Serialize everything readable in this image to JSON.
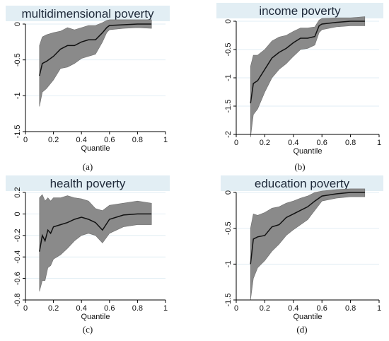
{
  "chart_data": [
    {
      "type": "line",
      "title": "multidimensional poverty",
      "panel_label": "(a)",
      "xlabel": "Quantile",
      "ylabel": "",
      "xlim": [
        0,
        1
      ],
      "ylim": [
        -1.5,
        0
      ],
      "xticks": [
        "0",
        "0.2",
        "0.4",
        "0.6",
        "0.8",
        "1"
      ],
      "yticks": [
        "0",
        "-0.5",
        "-1",
        "-1.5"
      ],
      "ytick_values": [
        0,
        -0.5,
        -1,
        -1.5
      ],
      "grid": true,
      "legend": "none",
      "series": [
        {
          "band": "confidence interval",
          "x": [
            0.1,
            0.12,
            0.15,
            0.2,
            0.25,
            0.3,
            0.35,
            0.4,
            0.45,
            0.5,
            0.55,
            0.58,
            0.6,
            0.7,
            0.8,
            0.9
          ],
          "values": [
            -0.72,
            -0.55,
            -0.52,
            -0.45,
            -0.35,
            -0.3,
            -0.3,
            -0.25,
            -0.22,
            -0.22,
            -0.12,
            -0.05,
            -0.02,
            -0.01,
            0,
            0
          ],
          "lower": [
            -1.15,
            -0.95,
            -0.9,
            -0.78,
            -0.62,
            -0.6,
            -0.55,
            -0.48,
            -0.45,
            -0.42,
            -0.25,
            -0.12,
            -0.08,
            -0.06,
            -0.05,
            -0.06
          ],
          "upper": [
            -0.3,
            -0.18,
            -0.15,
            -0.12,
            -0.1,
            -0.05,
            -0.08,
            -0.05,
            -0.02,
            -0.02,
            0.02,
            0.05,
            0.06,
            0.06,
            0.06,
            0.06
          ]
        }
      ]
    },
    {
      "type": "line",
      "title": "income poverty",
      "panel_label": "(b)",
      "xlabel": "Quantile",
      "ylabel": "",
      "xlim": [
        0,
        1
      ],
      "ylim": [
        -2,
        0
      ],
      "xticks": [
        "0",
        "0.2",
        "0.4",
        "0.6",
        "0.8",
        "1"
      ],
      "yticks": [
        "0",
        "-0.5",
        "-1",
        "-1.5",
        "-2"
      ],
      "ytick_values": [
        0,
        -0.5,
        -1,
        -1.5,
        -2
      ],
      "grid": true,
      "legend": "none",
      "series": [
        {
          "band": "confidence interval",
          "x": [
            0.1,
            0.12,
            0.15,
            0.2,
            0.25,
            0.3,
            0.35,
            0.4,
            0.45,
            0.5,
            0.55,
            0.58,
            0.6,
            0.7,
            0.8,
            0.9
          ],
          "values": [
            -1.45,
            -1.1,
            -1.05,
            -0.85,
            -0.65,
            -0.55,
            -0.48,
            -0.38,
            -0.3,
            -0.3,
            -0.27,
            -0.08,
            -0.05,
            -0.02,
            0,
            0
          ],
          "lower": [
            -2.05,
            -1.65,
            -1.55,
            -1.25,
            -1.0,
            -0.85,
            -0.75,
            -0.62,
            -0.5,
            -0.48,
            -0.42,
            -0.2,
            -0.15,
            -0.1,
            -0.08,
            -0.08
          ],
          "upper": [
            -0.8,
            -0.6,
            -0.6,
            -0.5,
            -0.35,
            -0.28,
            -0.25,
            -0.18,
            -0.12,
            -0.12,
            -0.1,
            0.02,
            0.05,
            0.06,
            0.06,
            0.08
          ]
        }
      ]
    },
    {
      "type": "line",
      "title": "health poverty",
      "panel_label": "(c)",
      "xlabel": "Quantile",
      "ylabel": "",
      "xlim": [
        0,
        1
      ],
      "ylim": [
        -0.8,
        0.2
      ],
      "xticks": [
        "0",
        "0.2",
        "0.4",
        "0.6",
        "0.8",
        "1"
      ],
      "yticks": [
        "0.2",
        "0",
        "-0.2",
        "-0.4",
        "-0.6",
        "-0.8"
      ],
      "ytick_values": [
        0.2,
        0,
        -0.2,
        -0.4,
        -0.6,
        -0.8
      ],
      "grid": true,
      "legend": "none",
      "series": [
        {
          "band": "confidence interval",
          "x": [
            0.1,
            0.12,
            0.14,
            0.16,
            0.18,
            0.2,
            0.25,
            0.3,
            0.35,
            0.4,
            0.45,
            0.5,
            0.55,
            0.6,
            0.7,
            0.8,
            0.9
          ],
          "values": [
            -0.35,
            -0.2,
            -0.25,
            -0.15,
            -0.18,
            -0.12,
            -0.1,
            -0.08,
            -0.05,
            -0.03,
            -0.05,
            -0.08,
            -0.15,
            -0.05,
            -0.01,
            0,
            0
          ],
          "lower": [
            -0.72,
            -0.62,
            -0.62,
            -0.5,
            -0.48,
            -0.42,
            -0.38,
            -0.32,
            -0.25,
            -0.2,
            -0.18,
            -0.2,
            -0.27,
            -0.18,
            -0.12,
            -0.1,
            -0.1
          ],
          "upper": [
            0.15,
            0.18,
            0.12,
            0.15,
            0.12,
            0.15,
            0.15,
            0.17,
            0.15,
            0.14,
            0.12,
            0.05,
            0.03,
            0.08,
            0.1,
            0.12,
            0.1
          ]
        }
      ]
    },
    {
      "type": "line",
      "title": "education poverty",
      "panel_label": "(d)",
      "xlabel": "Quantile",
      "ylabel": "",
      "xlim": [
        0,
        1
      ],
      "ylim": [
        -1.5,
        0
      ],
      "xticks": [
        "0",
        "0.2",
        "0.4",
        "0.6",
        "0.8",
        "1"
      ],
      "yticks": [
        "0",
        "-0.5",
        "-1",
        "-1.5"
      ],
      "ytick_values": [
        0,
        -0.5,
        -1,
        -1.5
      ],
      "grid": true,
      "legend": "none",
      "series": [
        {
          "band": "confidence interval",
          "x": [
            0.1,
            0.12,
            0.15,
            0.2,
            0.25,
            0.3,
            0.35,
            0.4,
            0.45,
            0.5,
            0.55,
            0.6,
            0.7,
            0.8,
            0.9
          ],
          "values": [
            -1.0,
            -0.65,
            -0.62,
            -0.6,
            -0.48,
            -0.45,
            -0.35,
            -0.3,
            -0.25,
            -0.2,
            -0.12,
            -0.05,
            -0.02,
            0,
            0
          ],
          "lower": [
            -1.5,
            -1.2,
            -1.05,
            -0.95,
            -0.82,
            -0.72,
            -0.6,
            -0.52,
            -0.45,
            -0.38,
            -0.25,
            -0.12,
            -0.08,
            -0.06,
            -0.06
          ],
          "upper": [
            -0.5,
            -0.3,
            -0.32,
            -0.28,
            -0.22,
            -0.2,
            -0.15,
            -0.12,
            -0.08,
            -0.05,
            0.0,
            0.02,
            0.04,
            0.05,
            0.05
          ]
        }
      ]
    }
  ],
  "colors": {
    "title_band": "#e2eef4",
    "band_fill": "#8a8a8a",
    "line": "#111111",
    "grid": "#e2eef4",
    "axis": "#000000"
  }
}
